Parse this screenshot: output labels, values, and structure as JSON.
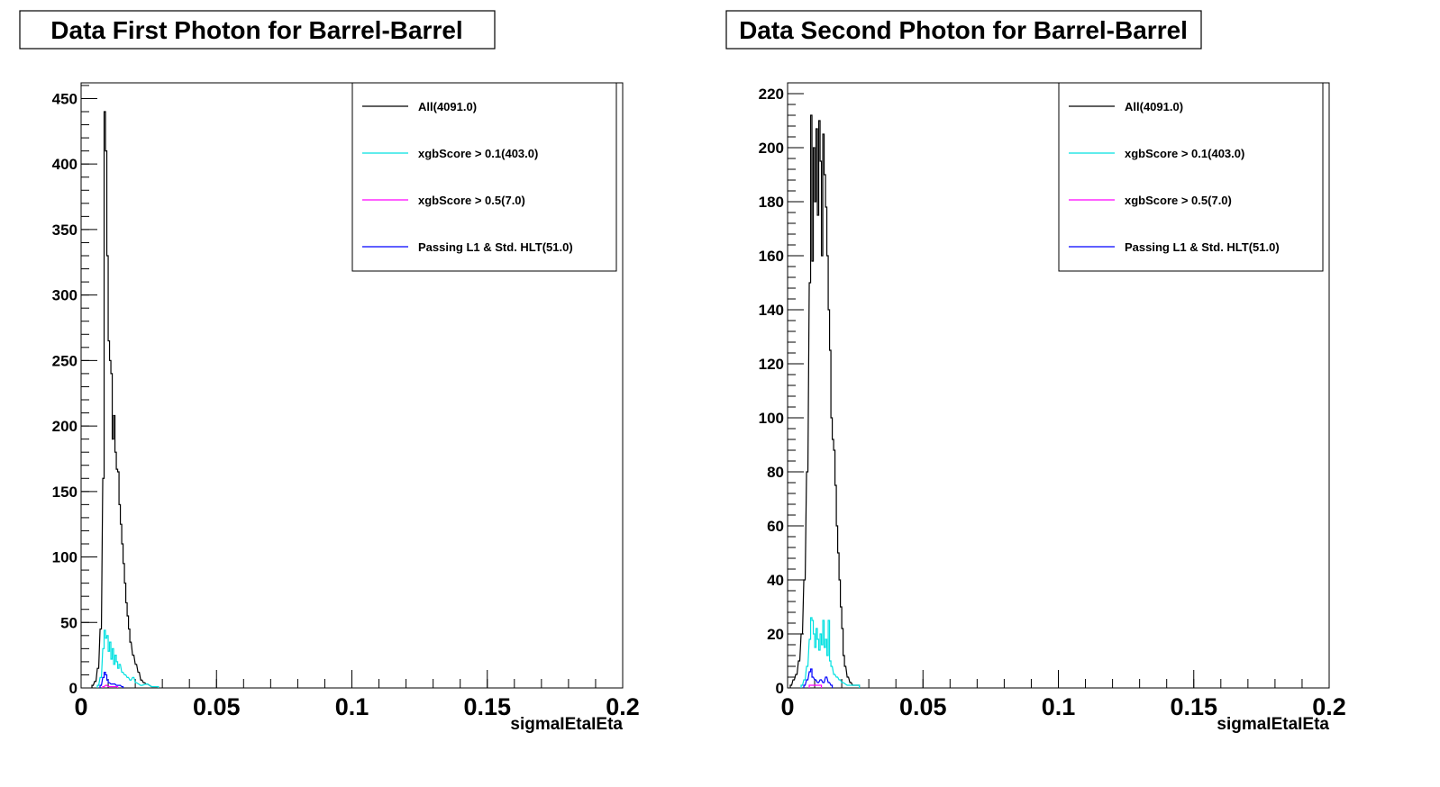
{
  "chart_data": [
    {
      "type": "line",
      "title": "Data First Photon for Barrel-Barrel",
      "xlabel": "sigmaIEtaIEta",
      "ylabel": "",
      "xlim": [
        0,
        0.2
      ],
      "ylim": [
        0,
        462
      ],
      "xticks": [
        {
          "v": 0,
          "label": "0"
        },
        {
          "v": 0.05,
          "label": "0.05"
        },
        {
          "v": 0.1,
          "label": "0.1"
        },
        {
          "v": 0.15,
          "label": "0.15"
        },
        {
          "v": 0.2,
          "label": "0.2"
        }
      ],
      "yticks": [
        {
          "v": 0,
          "label": "0"
        },
        {
          "v": 50,
          "label": "50"
        },
        {
          "v": 100,
          "label": "100"
        },
        {
          "v": 150,
          "label": "150"
        },
        {
          "v": 200,
          "label": "200"
        },
        {
          "v": 250,
          "label": "250"
        },
        {
          "v": 300,
          "label": "300"
        },
        {
          "v": 350,
          "label": "350"
        },
        {
          "v": 400,
          "label": "400"
        },
        {
          "v": 450,
          "label": "450"
        }
      ],
      "legend_position": "top-right",
      "series": [
        {
          "name": "All(4091.0)",
          "color": "#000000",
          "x": [
            0.004,
            0.005,
            0.006,
            0.007,
            0.008,
            0.0085,
            0.009,
            0.0095,
            0.01,
            0.0105,
            0.011,
            0.0115,
            0.012,
            0.0125,
            0.013,
            0.0135,
            0.014,
            0.0145,
            0.015,
            0.0155,
            0.016,
            0.0165,
            0.017,
            0.0175,
            0.018,
            0.019,
            0.02,
            0.021,
            0.022,
            0.023,
            0.024,
            0.026,
            0.028
          ],
          "values": [
            2,
            5,
            15,
            45,
            160,
            440,
            410,
            330,
            265,
            250,
            240,
            190,
            208,
            180,
            167,
            165,
            140,
            125,
            110,
            95,
            80,
            65,
            55,
            45,
            35,
            25,
            18,
            12,
            6,
            4,
            3,
            1,
            1
          ]
        },
        {
          "name": "xgbScore > 0.1(403.0)",
          "color": "#00e0e0",
          "x": [
            0.006,
            0.007,
            0.008,
            0.0085,
            0.009,
            0.0095,
            0.01,
            0.0105,
            0.011,
            0.0115,
            0.012,
            0.0125,
            0.013,
            0.0135,
            0.014,
            0.015,
            0.016,
            0.017,
            0.018,
            0.019,
            0.02,
            0.022,
            0.024,
            0.026,
            0.028
          ],
          "values": [
            2,
            8,
            30,
            44,
            38,
            40,
            28,
            35,
            22,
            30,
            18,
            25,
            20,
            15,
            18,
            12,
            10,
            8,
            6,
            8,
            4,
            2,
            3,
            1,
            1
          ]
        },
        {
          "name": "xgbScore > 0.5(7.0)",
          "color": "#ff00ff",
          "x": [
            0.008,
            0.009,
            0.01,
            0.011,
            0.012,
            0.013
          ],
          "values": [
            1,
            2,
            1,
            1,
            1,
            1
          ]
        },
        {
          "name": "Passing L1 & Std. HLT(51.0)",
          "color": "#0000ff",
          "x": [
            0.007,
            0.008,
            0.0085,
            0.009,
            0.0095,
            0.01,
            0.011,
            0.012,
            0.013,
            0.014,
            0.015
          ],
          "values": [
            2,
            8,
            12,
            10,
            6,
            4,
            3,
            3,
            2,
            2,
            1
          ]
        }
      ]
    },
    {
      "type": "line",
      "title": "Data Second Photon for Barrel-Barrel",
      "xlabel": "sigmaIEtaIEta",
      "ylabel": "",
      "xlim": [
        0,
        0.2
      ],
      "ylim": [
        0,
        224
      ],
      "xticks": [
        {
          "v": 0,
          "label": "0"
        },
        {
          "v": 0.05,
          "label": "0.05"
        },
        {
          "v": 0.1,
          "label": "0.1"
        },
        {
          "v": 0.15,
          "label": "0.15"
        },
        {
          "v": 0.2,
          "label": "0.2"
        }
      ],
      "yticks": [
        {
          "v": 0,
          "label": "0"
        },
        {
          "v": 20,
          "label": "20"
        },
        {
          "v": 40,
          "label": "40"
        },
        {
          "v": 60,
          "label": "60"
        },
        {
          "v": 80,
          "label": "80"
        },
        {
          "v": 100,
          "label": "100"
        },
        {
          "v": 120,
          "label": "120"
        },
        {
          "v": 140,
          "label": "140"
        },
        {
          "v": 160,
          "label": "160"
        },
        {
          "v": 180,
          "label": "180"
        },
        {
          "v": 200,
          "label": "200"
        },
        {
          "v": 220,
          "label": "220"
        }
      ],
      "legend_position": "top-right",
      "series": [
        {
          "name": "All(4091.0)",
          "color": "#000000",
          "x": [
            0.001,
            0.002,
            0.003,
            0.004,
            0.005,
            0.006,
            0.007,
            0.008,
            0.0085,
            0.009,
            0.0095,
            0.01,
            0.0105,
            0.011,
            0.0115,
            0.012,
            0.0125,
            0.013,
            0.0135,
            0.014,
            0.0145,
            0.015,
            0.0155,
            0.016,
            0.0165,
            0.017,
            0.0175,
            0.018,
            0.0185,
            0.019,
            0.0195,
            0.02,
            0.0205,
            0.021,
            0.022,
            0.023,
            0.024,
            0.025,
            0.026
          ],
          "values": [
            1,
            3,
            5,
            10,
            20,
            40,
            80,
            150,
            212,
            158,
            200,
            180,
            207,
            175,
            210,
            195,
            160,
            205,
            190,
            178,
            160,
            140,
            125,
            100,
            92,
            88,
            75,
            60,
            50,
            40,
            30,
            22,
            12,
            8,
            4,
            2,
            1,
            1,
            1
          ]
        },
        {
          "name": "xgbScore > 0.1(403.0)",
          "color": "#00e0e0",
          "x": [
            0.005,
            0.006,
            0.007,
            0.008,
            0.0085,
            0.009,
            0.0095,
            0.01,
            0.0105,
            0.011,
            0.0115,
            0.012,
            0.0125,
            0.013,
            0.0135,
            0.014,
            0.0145,
            0.015,
            0.0155,
            0.016,
            0.017,
            0.018,
            0.019,
            0.02,
            0.022,
            0.024,
            0.026
          ],
          "values": [
            1,
            3,
            8,
            18,
            26,
            25,
            20,
            15,
            22,
            18,
            14,
            20,
            16,
            25,
            15,
            18,
            12,
            25,
            10,
            8,
            5,
            4,
            3,
            2,
            1,
            1,
            1
          ]
        },
        {
          "name": "xgbScore > 0.5(7.0)",
          "color": "#ff00ff",
          "x": [
            0.008,
            0.009,
            0.01,
            0.011,
            0.012
          ],
          "values": [
            1,
            1,
            1,
            1,
            1
          ]
        },
        {
          "name": "Passing L1 & Std. HLT(51.0)",
          "color": "#0000ff",
          "x": [
            0.006,
            0.007,
            0.008,
            0.0085,
            0.009,
            0.01,
            0.011,
            0.012,
            0.013,
            0.014,
            0.015,
            0.016
          ],
          "values": [
            1,
            3,
            6,
            7,
            4,
            3,
            2,
            3,
            2,
            4,
            2,
            1
          ]
        }
      ]
    }
  ]
}
